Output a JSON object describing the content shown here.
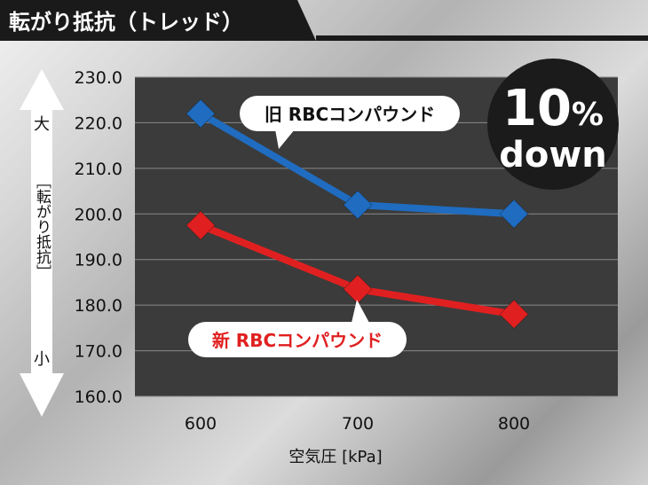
{
  "header": {
    "title": "転がり抵抗（トレッド）"
  },
  "colors": {
    "old": "#1f6cc0",
    "new": "#e02020",
    "plot_bg": "#3b3b3b",
    "header_bg": "#1a1a1a"
  },
  "badge": {
    "line1": "10",
    "percent": "%",
    "line2": "down"
  },
  "y_side_label": {
    "top": "大",
    "middle": "［転がり抵抗］",
    "bottom": "小"
  },
  "chart_data": {
    "type": "line",
    "title": "転がり抵抗（トレッド）",
    "xlabel": "空気圧 [kPa]",
    "ylabel": "［転がり抵抗］",
    "x": [
      600,
      700,
      800
    ],
    "x_tick_labels": [
      "600",
      "700",
      "800"
    ],
    "ylim": [
      160.0,
      230.0
    ],
    "y_ticks": [
      160.0,
      170.0,
      180.0,
      190.0,
      200.0,
      210.0,
      220.0,
      230.0
    ],
    "y_tick_labels": [
      "160.0",
      "170.0",
      "180.0",
      "190.0",
      "200.0",
      "210.0",
      "220.0",
      "230.0"
    ],
    "grid": true,
    "series": [
      {
        "name": "旧 RBCコンパウンド",
        "color": "#1f6cc0",
        "values": [
          222.0,
          202.0,
          200.0
        ]
      },
      {
        "name": "新 RBCコンパウンド",
        "color": "#e02020",
        "values": [
          197.5,
          183.5,
          178.0
        ]
      }
    ]
  }
}
